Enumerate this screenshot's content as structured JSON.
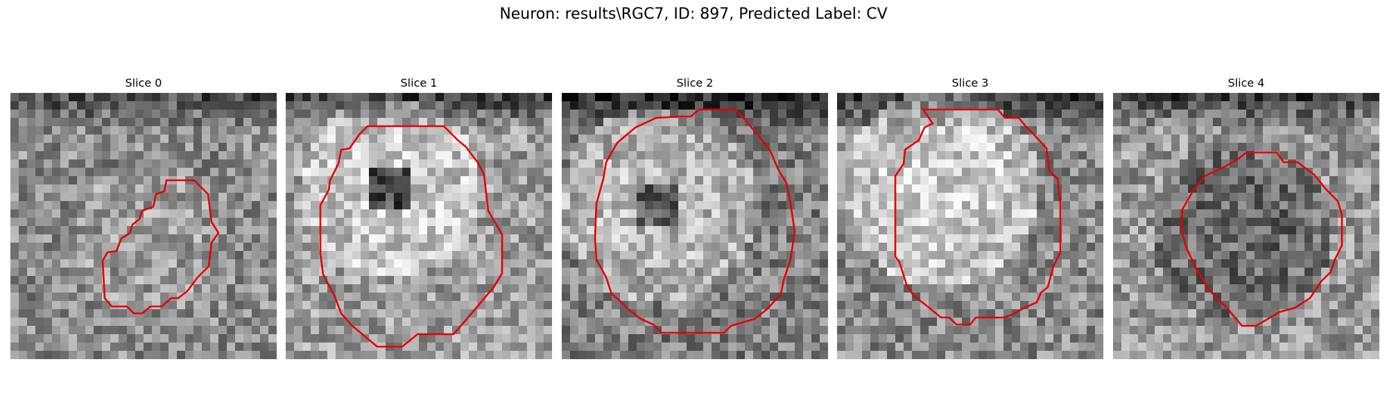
{
  "figure": {
    "suptitle": "Neuron: results\\RGC7, ID: 897, Predicted Label: CV",
    "contour_color": "#ff0000",
    "colormap": "grayscale"
  },
  "slices": [
    {
      "title": "Slice 0"
    },
    {
      "title": "Slice 1"
    },
    {
      "title": "Slice 2"
    },
    {
      "title": "Slice 3"
    },
    {
      "title": "Slice 4"
    }
  ]
}
